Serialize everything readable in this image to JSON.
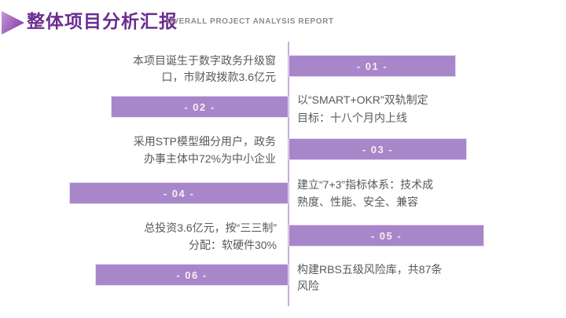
{
  "slide": {
    "title": "整体项目分析汇报",
    "subtitle": "OVERALL PROJECT ANALYSIS REPORT"
  },
  "colors": {
    "accent_purple": "#a886ca",
    "title_purple": "#6b2d90",
    "divider_purple": "#c9aade",
    "body_text_gray": "#595959",
    "subtitle_gray": "#8c8c8c",
    "bar_label_light": "#f7eef5"
  },
  "items": [
    {
      "num": "01",
      "label": "- 01 -",
      "side": "right",
      "line1": "以“SMART+OKR”双轨制定",
      "line2": "目标：十八个月内上线"
    },
    {
      "num": "02",
      "label": "- 02 -",
      "side": "left",
      "line1": "本项目诞生于数字政务升级窗",
      "line2": "口，市财政拨款3.6亿元"
    },
    {
      "num": "03",
      "label": "- 03 -",
      "side": "right",
      "line1": "建立“7+3”指标体系：技术成",
      "line2": "熟度、性能、安全、兼容"
    },
    {
      "num": "04",
      "label": "- 04 -",
      "side": "left",
      "line1": "采用STP模型细分用户，政务",
      "line2": "办事主体中72%为中小企业"
    },
    {
      "num": "05",
      "label": "- 05 -",
      "side": "right",
      "line1": "构建RBS五级风险库，共87条",
      "line2": "风险"
    },
    {
      "num": "06",
      "label": "- 06 -",
      "side": "left",
      "line1": "总投资3.6亿元，按“三三制”",
      "line2": "分配：软硬件30%"
    }
  ]
}
